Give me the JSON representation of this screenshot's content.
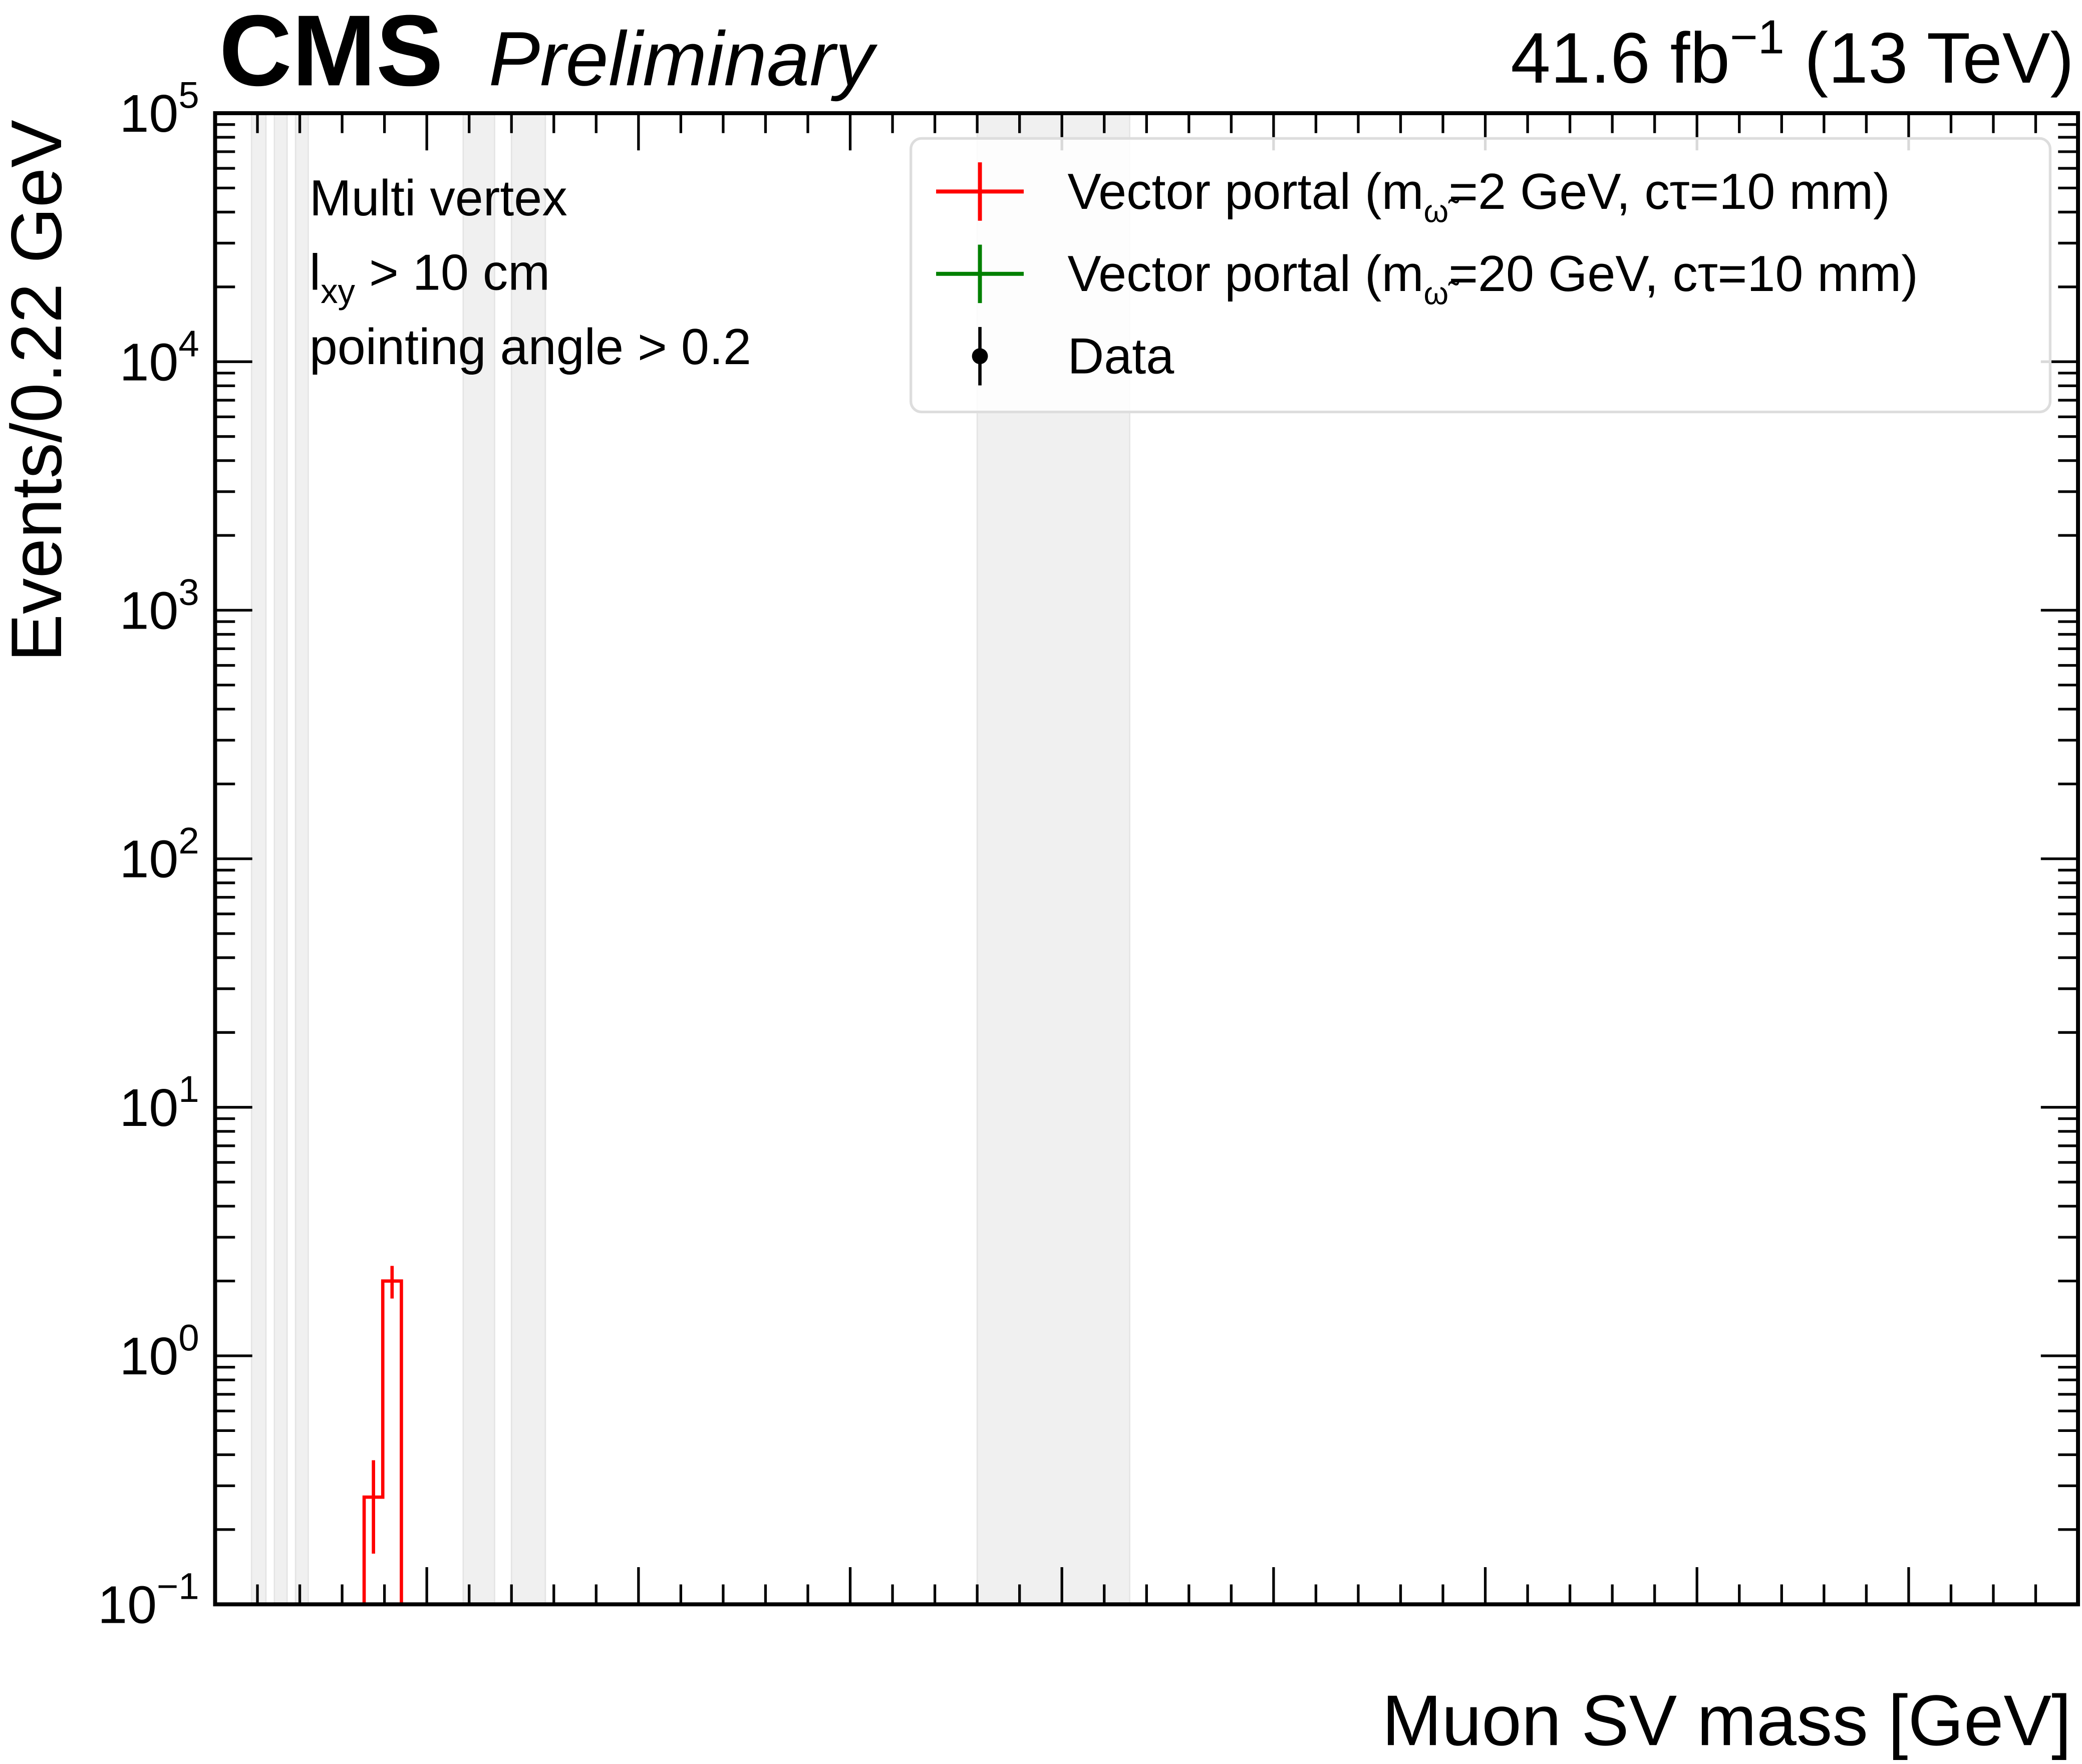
{
  "header": {
    "cms": "CMS",
    "preliminary": "Preliminary",
    "lumi_main": "41.6 fb",
    "lumi_sup": "−1",
    "lumi_energy": " (13 TeV)"
  },
  "annotations": {
    "line1": "Multi vertex",
    "line2_l": "l",
    "line2_sub": "xy",
    "line2_rest": " >  10 cm",
    "line3": "pointing angle > 0.2"
  },
  "chart_data": {
    "type": "bar",
    "xlabel": "Muon SV mass [GeV]",
    "ylabel": "Events/0.22 GeV",
    "xlim": [
      0,
      22
    ],
    "ylim": [
      0.1,
      100000
    ],
    "yscale": "log",
    "xticks": [
      "0.0",
      "2.5",
      "5.0",
      "7.5",
      "10.0",
      "12.5",
      "15.0",
      "17.5",
      "20.0"
    ],
    "xtick_values": [
      0,
      2.5,
      5,
      7.5,
      10,
      12.5,
      15,
      17.5,
      20
    ],
    "ytick_exponents": [
      "−1",
      "0",
      "1",
      "2",
      "3",
      "4",
      "5"
    ],
    "ytick_values": [
      0.1,
      1,
      10,
      100,
      1000,
      10000,
      100000
    ],
    "masked_regions_gev": [
      [
        0.43,
        0.6
      ],
      [
        0.7,
        0.85
      ],
      [
        0.95,
        1.1
      ],
      [
        2.93,
        3.3
      ],
      [
        3.5,
        3.9
      ],
      [
        9.0,
        10.8
      ]
    ],
    "legend": [
      {
        "pre": "Vector portal (m",
        "sub": "ω̃",
        "post": "=2 GeV, cτ=10 mm)",
        "color": "#ff0000",
        "marker": "cross"
      },
      {
        "pre": "Vector portal (m",
        "sub": "ω̃",
        "post": "=20 GeV, cτ=10 mm)",
        "color": "#008000",
        "marker": "cross"
      },
      {
        "pre": "Data",
        "sub": "",
        "post": "",
        "color": "#000000",
        "marker": "dot"
      }
    ],
    "legend_placement": "top-right",
    "series": [
      {
        "name": "Vector portal (m=2 GeV, cτ=10 mm)",
        "color": "#ff0000",
        "bins": [
          [
            1.76,
            1.98
          ],
          [
            1.98,
            2.2
          ]
        ],
        "values": [
          0.27,
          2.0
        ],
        "err_low": [
          0.16,
          1.7
        ],
        "err_high": [
          0.38,
          2.3
        ]
      },
      {
        "name": "Vector portal (m=20 GeV, cτ=10 mm)",
        "color": "#008000",
        "bins": [],
        "values": []
      },
      {
        "name": "Data",
        "color": "#000000",
        "x": [],
        "values": []
      }
    ]
  }
}
